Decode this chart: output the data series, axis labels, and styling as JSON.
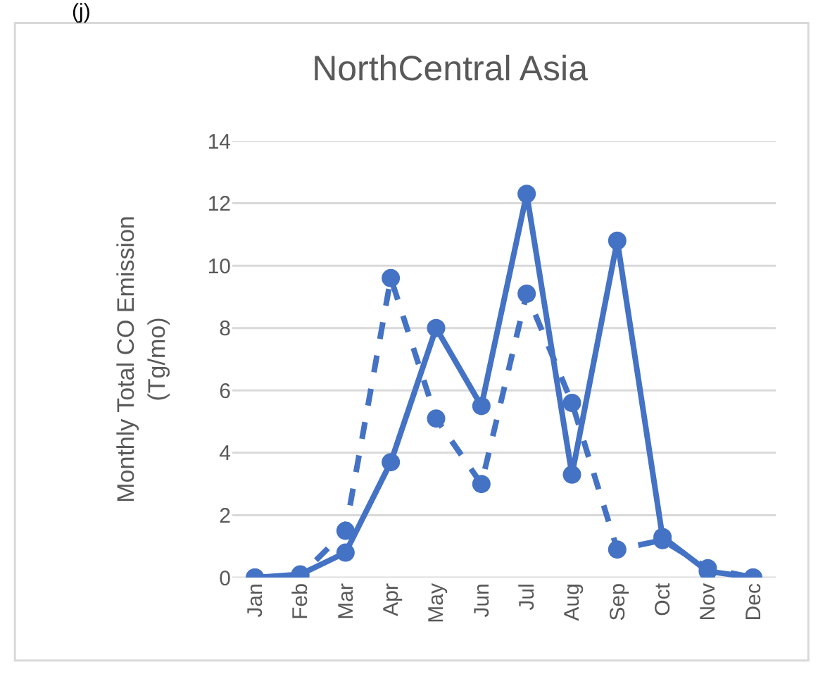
{
  "chart_data": {
    "type": "line",
    "title": "NorthCentral Asia",
    "ylabel": "Monthly Total CO Emission (Tg/mo)",
    "annotations": [
      "(j)"
    ],
    "categories": [
      "Jan",
      "Feb",
      "Mar",
      "Apr",
      "May",
      "Jun",
      "Jul",
      "Aug",
      "Sep",
      "Oct",
      "Nov",
      "Dec"
    ],
    "series": [
      {
        "color": "#4472c4",
        "line_style": "solid",
        "values": [
          0,
          0.1,
          0.8,
          3.7,
          8.0,
          5.5,
          12.3,
          3.3,
          10.8,
          1.3,
          0.2,
          0
        ]
      },
      {
        "color": "#4472c4",
        "line_style": "dashed",
        "values": [
          0,
          0.05,
          1.5,
          9.6,
          5.1,
          3.0,
          9.1,
          5.6,
          0.9,
          1.2,
          0.3,
          0
        ]
      }
    ],
    "ylim": [
      0,
      14
    ],
    "yticks": [
      0,
      2,
      4,
      6,
      8,
      10,
      12,
      14
    ],
    "grid": "y",
    "marker": "circle"
  }
}
